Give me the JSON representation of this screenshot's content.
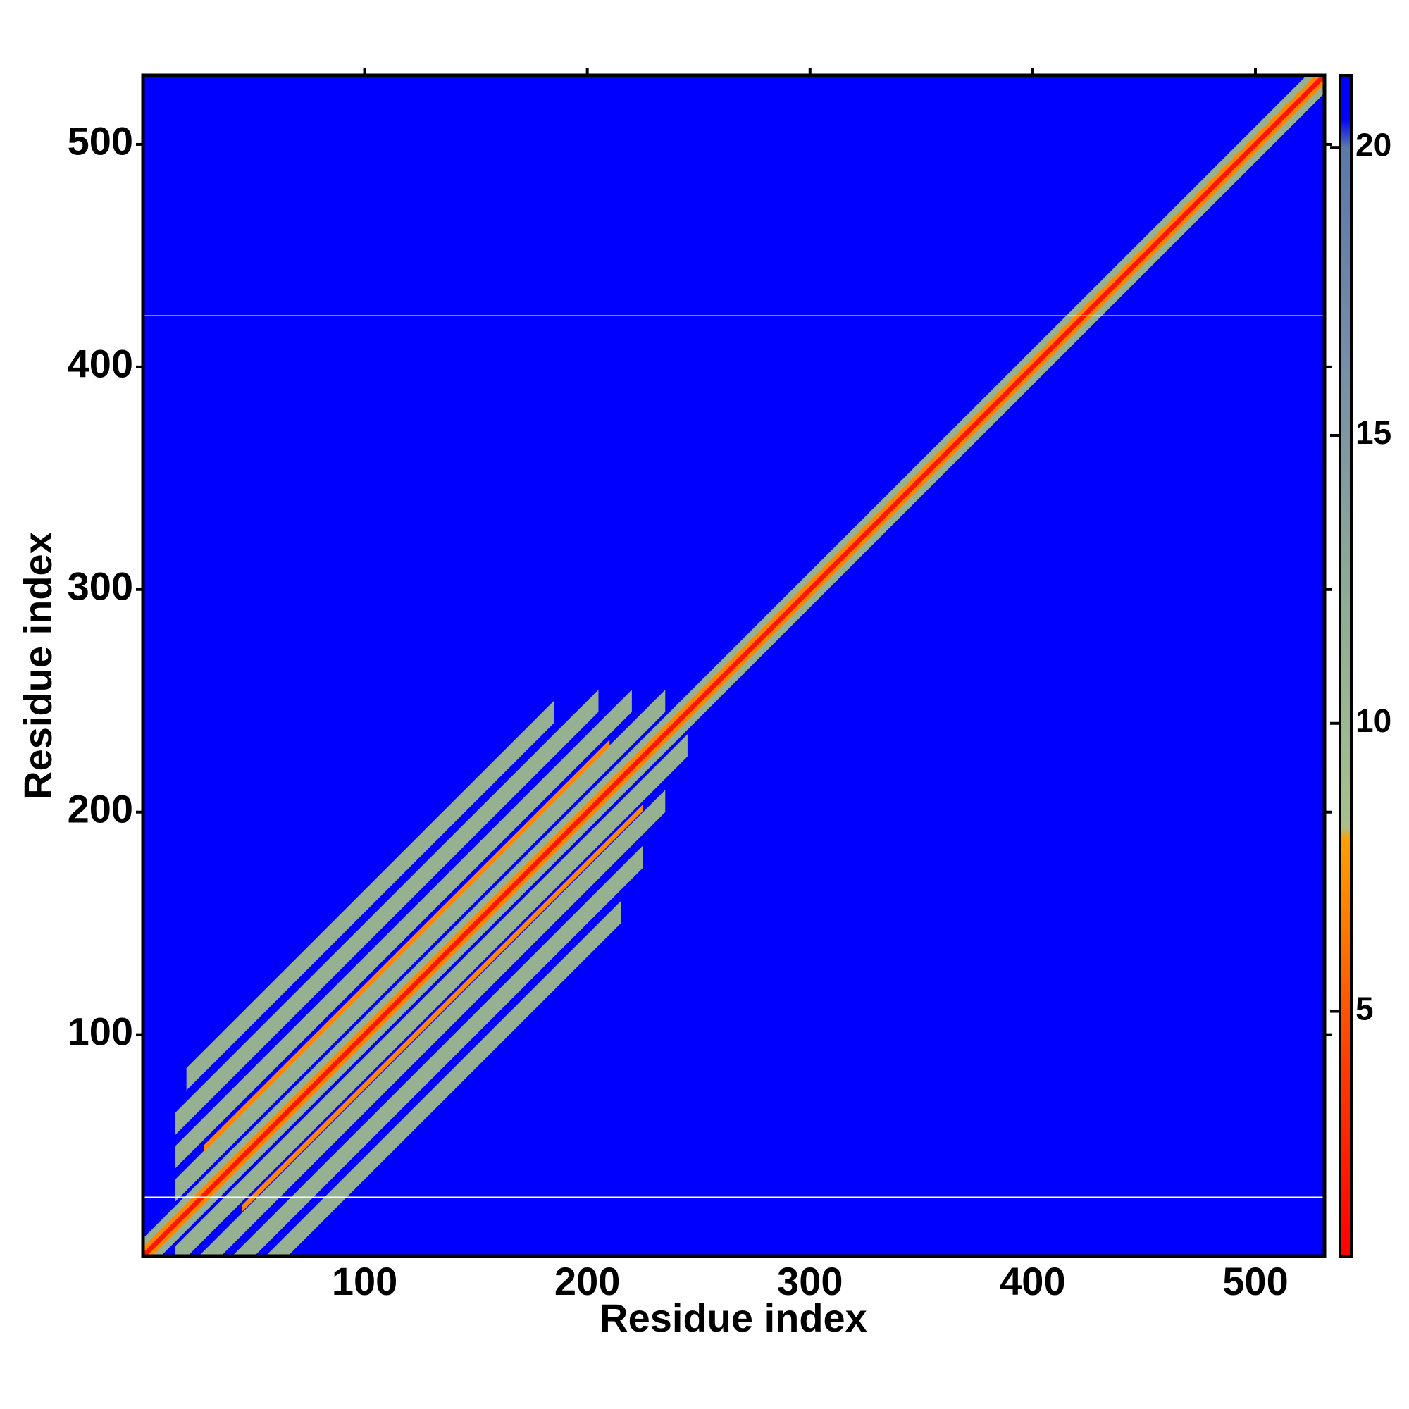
{
  "chart_data": {
    "type": "heatmap",
    "xlabel": "Residue index",
    "ylabel": "Residue index",
    "xlim": [
      0.5,
      531
    ],
    "ylim": [
      0.5,
      531
    ],
    "xticks": [
      100,
      200,
      300,
      400,
      500
    ],
    "yticks": [
      100,
      200,
      300,
      400,
      500
    ],
    "background_value": 21,
    "colorbar": {
      "lim": [
        0.75,
        21.25
      ],
      "ticks": [
        5,
        10,
        15,
        20
      ]
    },
    "colormap": [
      {
        "value": 0.75,
        "color": "#ff0000"
      },
      {
        "value": 4,
        "color": "#ff3a00"
      },
      {
        "value": 8,
        "color": "#ffa000"
      },
      {
        "value": 8.2,
        "color": "#a8c08c"
      },
      {
        "value": 12,
        "color": "#90ac94"
      },
      {
        "value": 16,
        "color": "#7890a8"
      },
      {
        "value": 20,
        "color": "#5a78a8"
      },
      {
        "value": 20.5,
        "color": "#0000ff"
      },
      {
        "value": 21.25,
        "color": "#0000ff"
      }
    ],
    "bands": [
      {
        "offset": -60,
        "half_width": 5,
        "start": 30,
        "end": 215,
        "value": 11
      },
      {
        "offset": -45,
        "half_width": 5,
        "start": 25,
        "end": 225,
        "value": 11
      },
      {
        "offset": -30,
        "half_width": 5,
        "start": 20,
        "end": 235,
        "value": 11
      },
      {
        "offset": -15,
        "half_width": 5,
        "start": 15,
        "end": 245,
        "value": 11
      },
      {
        "offset": 15,
        "half_width": 5,
        "start": 15,
        "end": 235,
        "value": 11
      },
      {
        "offset": 30,
        "half_width": 5,
        "start": 15,
        "end": 220,
        "value": 11
      },
      {
        "offset": 45,
        "half_width": 5,
        "start": 15,
        "end": 205,
        "value": 11
      },
      {
        "offset": 60,
        "half_width": 5,
        "start": 20,
        "end": 185,
        "value": 11
      },
      {
        "offset": 0,
        "half_width": 8,
        "start": 1,
        "end": 531,
        "value": 11
      },
      {
        "offset": 0,
        "half_width": 4,
        "start": 1,
        "end": 531,
        "value": 7
      },
      {
        "offset": 21,
        "half_width": 1.5,
        "start": 28,
        "end": 210,
        "value": 7
      },
      {
        "offset": -23,
        "half_width": 1.5,
        "start": 45,
        "end": 225,
        "value": 7
      },
      {
        "offset": 0,
        "half_width": 1.5,
        "start": 1,
        "end": 531,
        "value": 2
      }
    ],
    "hlines": [
      27,
      423
    ]
  }
}
